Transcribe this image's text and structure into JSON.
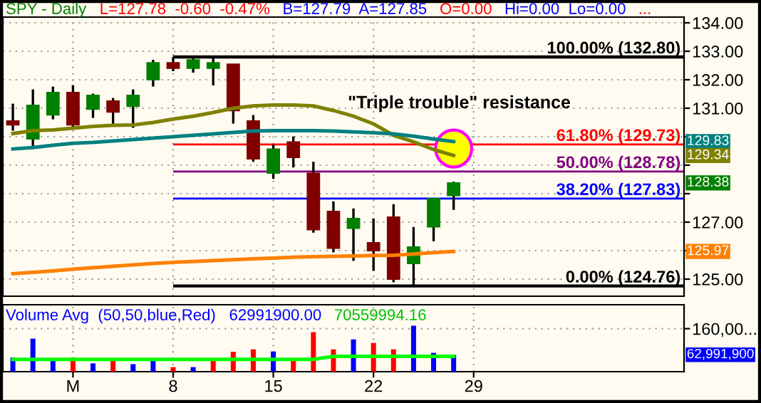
{
  "chart_data": [
    {
      "type": "candlestick",
      "title": "SPY - Daily",
      "annotations": [
        "L=127.78  -0.60  -0.47%",
        "B=127.79  A=127.85",
        "O=0.00",
        "Hi=0.00  Lo=0.00",
        "...",
        "\"Triple trouble\" resistance",
        {
          "text": "128.38",
          "y": 128.38
        },
        {
          "text": "129.83",
          "y": 129.83
        },
        {
          "text": "129.34",
          "y": 129.34
        },
        {
          "text": "125.97",
          "y": 125.97
        }
      ],
      "categories": [
        null,
        null,
        null,
        null,
        null,
        null,
        null,
        null,
        null,
        null,
        null,
        null,
        null,
        null,
        null,
        null,
        null,
        null,
        null,
        null,
        null,
        null,
        null,
        null,
        null,
        null,
        null,
        null,
        null,
        null,
        null,
        null,
        null,
        null
      ],
      "series": [
        {
          "type": "line",
          "color": "#808000",
          "values": [
            130.11,
            130.21,
            130.24,
            130.3,
            130.36,
            130.4,
            130.41,
            130.5,
            130.62,
            130.72,
            130.85,
            131.0,
            131.08,
            131.11,
            131.11,
            131.08,
            130.92,
            130.72,
            130.45,
            130.05,
            129.82,
            129.55,
            129.34,
            null,
            null,
            null,
            null,
            null,
            null,
            null,
            null,
            null,
            null,
            null
          ]
        },
        {
          "type": "line",
          "color": "#008080",
          "values": [
            129.57,
            129.62,
            129.7,
            129.77,
            129.8,
            129.85,
            129.9,
            129.95,
            130.0,
            130.05,
            130.1,
            130.15,
            130.2,
            130.21,
            130.21,
            130.21,
            130.2,
            130.17,
            130.14,
            130.1,
            130.02,
            129.92,
            129.83,
            null,
            null,
            null,
            null,
            null,
            null,
            null,
            null,
            null,
            null,
            null
          ]
        },
        {
          "type": "line",
          "color": "#ff8000",
          "values": [
            125.19,
            125.24,
            125.29,
            125.35,
            125.4,
            125.45,
            125.5,
            125.55,
            125.59,
            125.62,
            125.65,
            125.68,
            125.71,
            125.74,
            125.77,
            125.79,
            125.8,
            125.81,
            125.83,
            125.84,
            125.88,
            125.93,
            125.97,
            null,
            null,
            null,
            null,
            null,
            null,
            null,
            null,
            null,
            null,
            null
          ]
        },
        {
          "type": "candlestick",
          "colors": [
            "#800000",
            "#008000",
            "#008000",
            "#800000",
            "#008000",
            "#800000",
            "#008000",
            "#008000",
            "#800000",
            "#008000",
            "#008000",
            "#800000",
            "#800000",
            "#008000",
            "#800000",
            "#800000",
            "#800000",
            "#008000",
            "#800000",
            "#800000",
            "#008000",
            "#008000",
            "#008000",
            null,
            null,
            null,
            null,
            null,
            null,
            null,
            null,
            null,
            null,
            null
          ],
          "ohlc": [
            [
              130.56,
              131.16,
              130.21,
              130.41
            ],
            [
              129.92,
              131.66,
              129.57,
              131.11
            ],
            [
              130.76,
              131.76,
              130.61,
              131.56
            ],
            [
              131.56,
              131.81,
              130.31,
              130.41
            ],
            [
              130.96,
              131.51,
              130.66,
              131.46
            ],
            [
              131.26,
              131.36,
              130.41,
              130.86
            ],
            [
              131.06,
              131.66,
              130.31,
              131.46
            ],
            [
              132.0,
              132.7,
              131.76,
              132.6
            ],
            [
              132.6,
              132.8,
              132.3,
              132.4
            ],
            [
              132.4,
              132.75,
              132.25,
              132.7
            ],
            [
              132.4,
              132.8,
              131.8,
              132.6
            ],
            [
              132.55,
              132.55,
              130.46,
              130.91
            ],
            [
              130.56,
              130.76,
              129.12,
              129.22
            ],
            [
              128.72,
              129.72,
              128.52,
              129.57
            ],
            [
              129.82,
              130.01,
              128.92,
              129.27
            ],
            [
              128.72,
              129.12,
              126.63,
              126.73
            ],
            [
              127.38,
              127.73,
              125.94,
              126.08
            ],
            [
              126.78,
              127.48,
              125.64,
              127.13
            ],
            [
              126.28,
              127.13,
              125.29,
              125.99
            ],
            [
              127.18,
              127.63,
              124.89,
              124.99
            ],
            [
              125.54,
              126.83,
              124.76,
              126.13
            ],
            [
              126.83,
              127.83,
              126.33,
              127.83
            ],
            [
              127.93,
              128.42,
              127.43,
              128.38
            ],
            null,
            null,
            null,
            null,
            null,
            null,
            null,
            null,
            null,
            null,
            null
          ]
        }
      ],
      "ref_lines": [
        {
          "axis": "y",
          "value": 132.8,
          "label": "100.00% (132.80)",
          "color": "#000000"
        },
        {
          "axis": "y",
          "value": 129.73,
          "label": "61.80% (129.73)",
          "color": "#ff0000"
        },
        {
          "axis": "y",
          "value": 128.78,
          "label": "50.00% (128.78)",
          "color": "#800080"
        },
        {
          "axis": "y",
          "value": 127.83,
          "label": "38.20% (127.83)",
          "color": "#0000ff"
        },
        {
          "axis": "y",
          "value": 124.76,
          "label": "0.00% (124.76)",
          "color": "#000000"
        }
      ],
      "ylim": [
        124.4,
        134.2
      ],
      "yticks": [
        {
          "value": 125,
          "label": "125.00"
        },
        {
          "value": 126,
          "label": null
        },
        {
          "value": 127,
          "label": "127.00"
        },
        {
          "value": 128,
          "label": null
        },
        {
          "value": 129,
          "label": null
        },
        {
          "value": 130,
          "label": null
        },
        {
          "value": 131,
          "label": "131.00"
        },
        {
          "value": 132,
          "label": "132.00"
        },
        {
          "value": 133,
          "label": "133.00"
        },
        {
          "value": 134,
          "label": "134.00"
        }
      ],
      "grid": true,
      "tick_labels": "y"
    },
    {
      "type": "bar",
      "title": "Volume Avg  (50,50,blue,Red)",
      "annotations": [
        "62991900.00",
        "70559994.16",
        "62,991,900"
      ],
      "categories": [
        null,
        null,
        null,
        "M",
        null,
        null,
        null,
        null,
        "8",
        null,
        null,
        null,
        null,
        "15",
        null,
        null,
        null,
        null,
        "22",
        null,
        null,
        null,
        null,
        "29",
        null,
        null,
        null,
        null,
        null,
        null,
        null,
        null,
        null,
        null
      ],
      "series": [
        {
          "type": "bar",
          "color": "#0000ff",
          "values": [
            53000000,
            123000000,
            42000000,
            53000000,
            31000000,
            50000000,
            28000000,
            50000000,
            17000000,
            17000000,
            50000000,
            74000000,
            83000000,
            75000000,
            50000000,
            147000000,
            83000000,
            120000000,
            107000000,
            83000000,
            171000000,
            70000000,
            63000000,
            null,
            null,
            null,
            null,
            null,
            null,
            null,
            null,
            null,
            null,
            null
          ],
          "colors": [
            "#0000ff",
            "#0000ff",
            "#0000ff",
            "#ff0000",
            "#0000ff",
            "#ff0000",
            "#0000ff",
            "#0000ff",
            "#ff0000",
            "#0000ff",
            "#ff0000",
            "#ff0000",
            "#ff0000",
            "#0000ff",
            "#ff0000",
            "#ff0000",
            "#ff0000",
            "#0000ff",
            "#ff0000",
            "#ff0000",
            "#0000ff",
            "#0000ff",
            "#0000ff",
            null,
            null,
            null,
            null,
            null,
            null,
            null,
            null,
            null,
            null,
            null
          ]
        },
        {
          "type": "line",
          "color": "#00ff00",
          "values": [
            46000000,
            46000000,
            46000000,
            46000000,
            46000000,
            46000000,
            46000000,
            46000000,
            46000000,
            46000000,
            46000000,
            46000000,
            46000000,
            46000000,
            46000000,
            46000000,
            57000000,
            57000000,
            57000000,
            57000000,
            57000000,
            57000000,
            57000000,
            null,
            null,
            null,
            null,
            null,
            null,
            null,
            null,
            null,
            null,
            null
          ]
        }
      ],
      "ylim": [
        0,
        249000000
      ],
      "yticks": [
        {
          "value": 160000000,
          "label": "160,00..."
        }
      ],
      "grid": true
    }
  ]
}
